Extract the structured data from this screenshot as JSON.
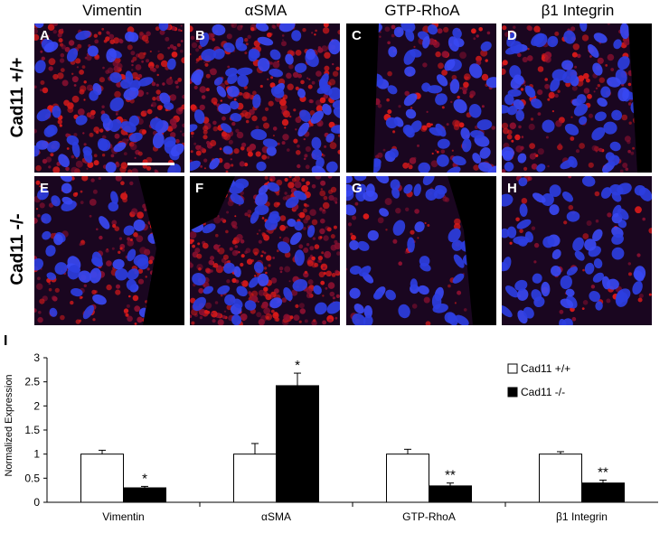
{
  "figure": {
    "columns": [
      "Vimentin",
      "αSMA",
      "GTP-RhoA",
      "β1 Integrin"
    ],
    "rows": [
      "Cad11 +/+",
      "Cad11 -/-"
    ],
    "panel_letters": [
      "A",
      "B",
      "C",
      "D",
      "E",
      "F",
      "G",
      "H"
    ],
    "chart_panel_letter": "I"
  },
  "chart_data": {
    "type": "bar",
    "categories": [
      "Vimentin",
      "αSMA",
      "GTP-RhoA",
      "β1 Integrin"
    ],
    "series": [
      {
        "name": "Cad11 +/+",
        "color": "#ffffff",
        "values": [
          1.0,
          1.0,
          1.0,
          1.0
        ],
        "errors": [
          0.08,
          0.22,
          0.1,
          0.05
        ]
      },
      {
        "name": "Cad11 -/-",
        "color": "#000000",
        "values": [
          0.3,
          2.42,
          0.34,
          0.4
        ],
        "errors": [
          0.03,
          0.26,
          0.06,
          0.06
        ]
      }
    ],
    "significance": [
      "*",
      "*",
      "**",
      "**"
    ],
    "ylabel": "Normalized Expression",
    "xlabel": "",
    "ylim": [
      0,
      3
    ],
    "yticks": [
      0,
      0.5,
      1,
      1.5,
      2,
      2.5,
      3
    ],
    "legend_position": "top-right",
    "grid": false
  }
}
